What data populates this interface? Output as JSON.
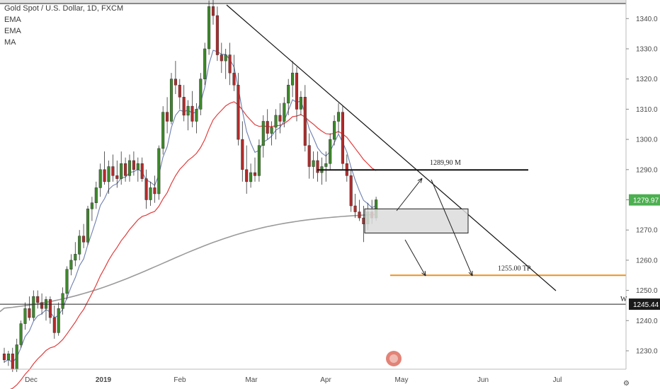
{
  "legend": {
    "title": "Gold Spot / U.S. Dollar, 1D, FXCM",
    "ind1": "EMA",
    "ind2": "EMA",
    "ind3": "MA"
  },
  "colors": {
    "bull": "#3d8a2a",
    "bear": "#b52a2a",
    "ema_fast": "#6d7fb0",
    "ema_slow": "#e23c3c",
    "ma": "#9a9a9a",
    "target_line": "#f0901a",
    "price_badge": "#4caf50"
  },
  "chart_data": {
    "type": "candlestick",
    "ylim": [
      1222,
      1348
    ],
    "yticks": [
      1230,
      1240,
      1250,
      1260,
      1270,
      1280,
      1290,
      1300,
      1310,
      1320,
      1330,
      1340
    ],
    "xticks": [
      "Dec",
      "2019",
      "Feb",
      "Mar",
      "Apr",
      "May",
      "Jun",
      "Jul"
    ],
    "last_price": "1279.97",
    "level_price": "1245.44",
    "level_letter": "W",
    "resistance_label": "1289,90 M",
    "target_label": "1255.00 TP",
    "resistance": 1289.9,
    "target": 1255.0,
    "support_level": 1245.44,
    "top_band": 1345,
    "zone": {
      "low": 1269,
      "high": 1277
    },
    "candles": [
      [
        1229,
        1231,
        1226,
        1227
      ],
      [
        1227,
        1230,
        1225,
        1229
      ],
      [
        1229,
        1231,
        1223,
        1224
      ],
      [
        1224,
        1234,
        1223,
        1232
      ],
      [
        1232,
        1240,
        1231,
        1239
      ],
      [
        1239,
        1246,
        1237,
        1244
      ],
      [
        1244,
        1248,
        1240,
        1241
      ],
      [
        1241,
        1250,
        1240,
        1248
      ],
      [
        1248,
        1250,
        1244,
        1246
      ],
      [
        1246,
        1249,
        1242,
        1244
      ],
      [
        1244,
        1248,
        1240,
        1247
      ],
      [
        1247,
        1248,
        1239,
        1241
      ],
      [
        1241,
        1245,
        1234,
        1236
      ],
      [
        1236,
        1246,
        1235,
        1244
      ],
      [
        1244,
        1251,
        1242,
        1249
      ],
      [
        1249,
        1258,
        1247,
        1257
      ],
      [
        1257,
        1262,
        1255,
        1260
      ],
      [
        1260,
        1266,
        1258,
        1262
      ],
      [
        1262,
        1270,
        1260,
        1268
      ],
      [
        1268,
        1272,
        1264,
        1266
      ],
      [
        1266,
        1278,
        1265,
        1277
      ],
      [
        1277,
        1281,
        1273,
        1279
      ],
      [
        1279,
        1286,
        1277,
        1284
      ],
      [
        1284,
        1292,
        1281,
        1290
      ],
      [
        1290,
        1296,
        1285,
        1286
      ],
      [
        1286,
        1293,
        1282,
        1291
      ],
      [
        1291,
        1295,
        1286,
        1288
      ],
      [
        1288,
        1293,
        1284,
        1287
      ],
      [
        1287,
        1296,
        1285,
        1292
      ],
      [
        1292,
        1294,
        1286,
        1288
      ],
      [
        1288,
        1295,
        1286,
        1293
      ],
      [
        1293,
        1296,
        1288,
        1290
      ],
      [
        1290,
        1294,
        1286,
        1292
      ],
      [
        1292,
        1294,
        1286,
        1287
      ],
      [
        1287,
        1290,
        1277,
        1280
      ],
      [
        1280,
        1286,
        1278,
        1284
      ],
      [
        1284,
        1288,
        1279,
        1282
      ],
      [
        1282,
        1298,
        1280,
        1297
      ],
      [
        1297,
        1311,
        1295,
        1309
      ],
      [
        1309,
        1314,
        1302,
        1306
      ],
      [
        1306,
        1322,
        1305,
        1320
      ],
      [
        1320,
        1326,
        1315,
        1318
      ],
      [
        1318,
        1320,
        1310,
        1314
      ],
      [
        1314,
        1318,
        1306,
        1308
      ],
      [
        1308,
        1313,
        1303,
        1311
      ],
      [
        1311,
        1316,
        1304,
        1306
      ],
      [
        1306,
        1312,
        1302,
        1310
      ],
      [
        1310,
        1322,
        1308,
        1320
      ],
      [
        1320,
        1332,
        1318,
        1330
      ],
      [
        1330,
        1346,
        1328,
        1344
      ],
      [
        1344,
        1347,
        1338,
        1341
      ],
      [
        1341,
        1344,
        1326,
        1328
      ],
      [
        1328,
        1332,
        1322,
        1326
      ],
      [
        1326,
        1330,
        1320,
        1328
      ],
      [
        1328,
        1332,
        1318,
        1322
      ],
      [
        1322,
        1328,
        1316,
        1318
      ],
      [
        1318,
        1322,
        1298,
        1300
      ],
      [
        1300,
        1306,
        1286,
        1290
      ],
      [
        1290,
        1298,
        1282,
        1286
      ],
      [
        1286,
        1292,
        1284,
        1289
      ],
      [
        1289,
        1294,
        1286,
        1288
      ],
      [
        1288,
        1300,
        1286,
        1298
      ],
      [
        1298,
        1308,
        1294,
        1306
      ],
      [
        1306,
        1310,
        1300,
        1302
      ],
      [
        1302,
        1306,
        1298,
        1304
      ],
      [
        1304,
        1310,
        1300,
        1308
      ],
      [
        1308,
        1312,
        1302,
        1306
      ],
      [
        1306,
        1314,
        1304,
        1312
      ],
      [
        1312,
        1320,
        1308,
        1318
      ],
      [
        1318,
        1326,
        1314,
        1322
      ],
      [
        1322,
        1324,
        1306,
        1310
      ],
      [
        1310,
        1316,
        1308,
        1314
      ],
      [
        1314,
        1318,
        1296,
        1298
      ],
      [
        1298,
        1302,
        1287,
        1291
      ],
      [
        1291,
        1296,
        1287,
        1293
      ],
      [
        1293,
        1296,
        1286,
        1289
      ],
      [
        1289,
        1294,
        1285,
        1291
      ],
      [
        1291,
        1296,
        1286,
        1292
      ],
      [
        1292,
        1302,
        1290,
        1300
      ],
      [
        1300,
        1308,
        1298,
        1306
      ],
      [
        1306,
        1312,
        1302,
        1309
      ],
      [
        1309,
        1311,
        1290,
        1292
      ],
      [
        1292,
        1295,
        1286,
        1288
      ],
      [
        1288,
        1290,
        1276,
        1278
      ],
      [
        1278,
        1282,
        1274,
        1276
      ],
      [
        1276,
        1280,
        1273,
        1274
      ],
      [
        1274,
        1278,
        1266,
        1272
      ],
      [
        1272,
        1279,
        1270,
        1276
      ],
      [
        1276,
        1280,
        1272,
        1274
      ],
      [
        1274,
        1281,
        1273,
        1280
      ]
    ]
  }
}
